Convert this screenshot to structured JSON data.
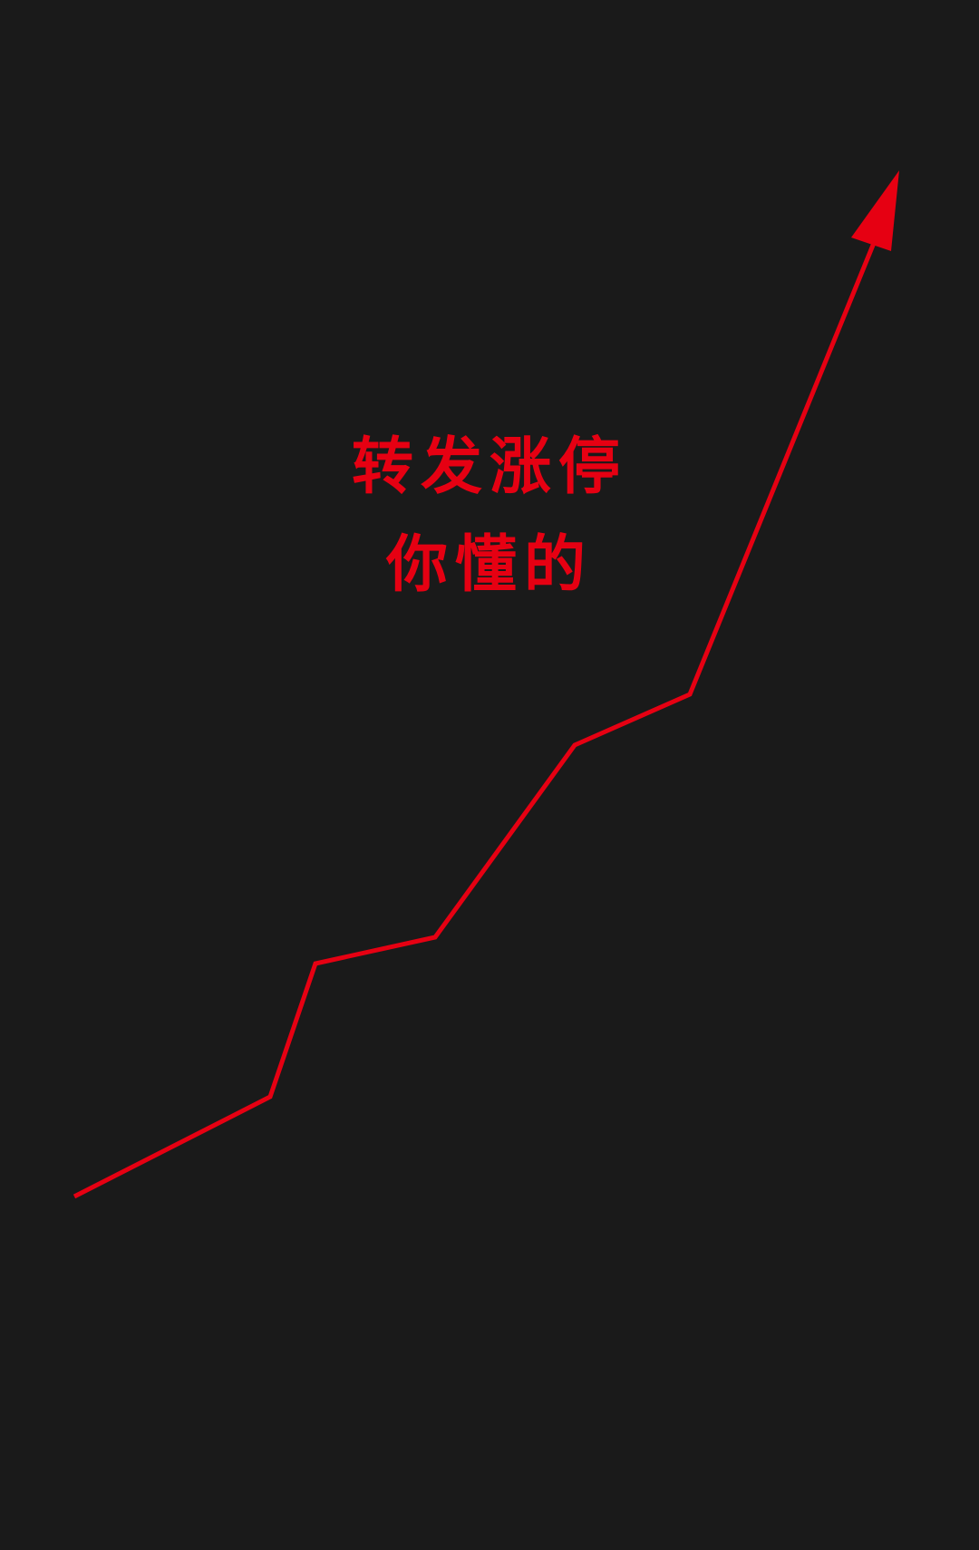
{
  "caption": {
    "line1": "转发涨停",
    "line2": "你懂的"
  },
  "colors": {
    "background": "#1a1a1a",
    "accent": "#e60012"
  },
  "graphic": {
    "icon": "rising-arrow-icon"
  }
}
